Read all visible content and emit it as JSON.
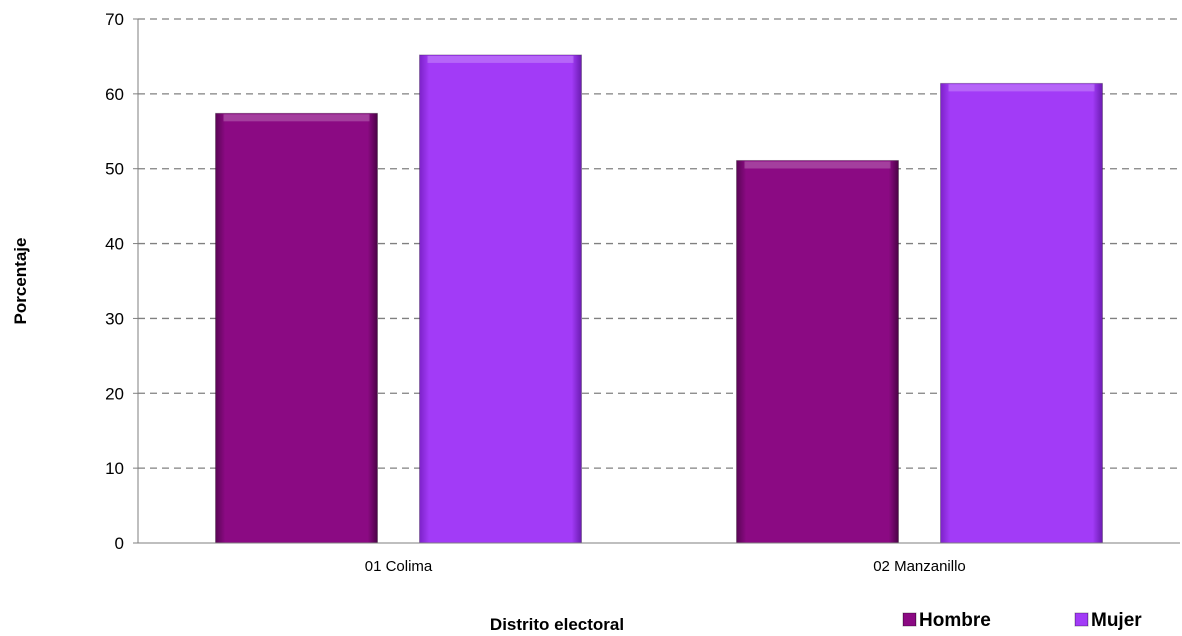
{
  "chart_data": {
    "type": "bar",
    "categories": [
      "01 Colima",
      "02 Manzanillo"
    ],
    "series": [
      {
        "name": "Hombre",
        "values": [
          57.4,
          51.1
        ],
        "color": "#8b0a83"
      },
      {
        "name": "Mujer",
        "values": [
          65.2,
          61.4
        ],
        "color": "#a23bf7"
      }
    ],
    "xlabel": "Distrito electoral",
    "ylabel": "Porcentaje",
    "ylim": [
      0,
      70
    ],
    "yticks": [
      0,
      10,
      20,
      30,
      40,
      50,
      60,
      70
    ],
    "grid": "horizontal-dashed",
    "legend_position": "bottom-right"
  }
}
